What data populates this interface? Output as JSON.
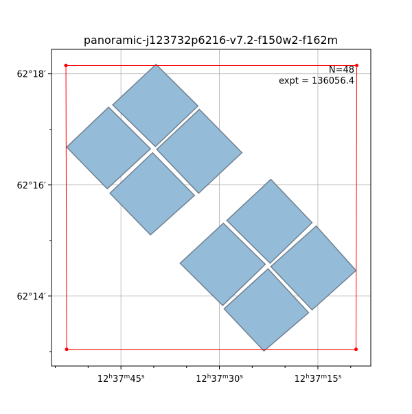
{
  "chart_data": {
    "type": "footprint",
    "title": "panoramic-j123732p6216-v7.2-f150w2-f162m",
    "annotations": [
      "N=48",
      "expt = 136056.4"
    ],
    "xlim": [
      55.58,
      6.94
    ],
    "ylim": [
      12.74,
      18.44
    ],
    "xticks": [
      {
        "value": 45,
        "label": "12h37m45s"
      },
      {
        "value": 30,
        "label": "12h37m30s"
      },
      {
        "value": 15,
        "label": "12h37m15s"
      }
    ],
    "xminorticks": [
      55,
      50,
      40,
      35,
      25,
      20,
      10
    ],
    "yticks": [
      {
        "value": 18,
        "label": "62°18′"
      },
      {
        "value": 16,
        "label": "62°16′"
      },
      {
        "value": 14,
        "label": "62°14′"
      }
    ],
    "yminorticks": [
      17,
      15,
      13
    ],
    "grid": true,
    "footprint_color": "#94bcd8",
    "footprint_edge": "#708090",
    "footprints": [
      {
        "x": [
          39.66,
          33.27,
          39.76,
          46.26
        ],
        "y": [
          18.17,
          17.42,
          16.69,
          17.44
        ]
      },
      {
        "x": [
          46.88,
          40.5,
          47.09,
          53.27
        ],
        "y": [
          17.4,
          16.65,
          15.93,
          16.68
        ]
      },
      {
        "x": [
          33.06,
          26.57,
          33.17,
          39.55
        ],
        "y": [
          17.36,
          16.58,
          15.85,
          16.64
        ]
      },
      {
        "x": [
          40.18,
          33.8,
          40.5,
          46.68
        ],
        "y": [
          16.58,
          15.81,
          15.1,
          15.85
        ]
      },
      {
        "x": [
          22.17,
          15.89,
          22.28,
          28.87
        ],
        "y": [
          16.1,
          15.32,
          14.59,
          15.36
        ]
      },
      {
        "x": [
          29.4,
          23.01,
          29.5,
          35.99
        ],
        "y": [
          15.31,
          14.57,
          13.83,
          14.59
        ]
      },
      {
        "x": [
          15.26,
          9.19,
          15.89,
          22.17
        ],
        "y": [
          15.26,
          14.46,
          13.75,
          14.53
        ]
      },
      {
        "x": [
          22.59,
          16.41,
          23.22,
          29.29
        ],
        "y": [
          14.49,
          13.7,
          13.01,
          13.77
        ]
      }
    ],
    "outline": {
      "color": "#ff0000",
      "x": [
        53.38,
        9.08,
        9.19,
        53.27,
        53.38
      ],
      "y": [
        18.15,
        18.15,
        13.04,
        13.04,
        18.15
      ]
    }
  }
}
